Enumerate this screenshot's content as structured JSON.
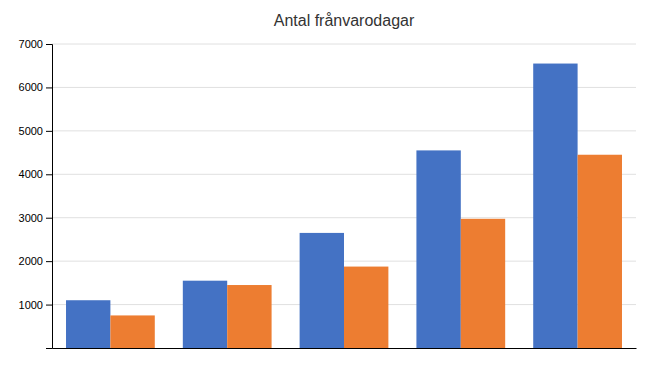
{
  "chart_data": {
    "type": "bar",
    "title": "Antal frånvarodagar",
    "categories": [
      null,
      null,
      null,
      null,
      null
    ],
    "series": [
      {
        "color": "#4472C4",
        "values": [
          1100,
          1550,
          2650,
          4550,
          6550
        ]
      },
      {
        "color": "#ED7D31",
        "values": [
          750,
          1450,
          1875,
          2975,
          4450
        ]
      }
    ],
    "ylim": [
      0,
      7000
    ],
    "yticks": [
      1000,
      2000,
      3000,
      4000,
      5000,
      6000,
      7000
    ],
    "grid": true,
    "tick_labels": "y"
  }
}
